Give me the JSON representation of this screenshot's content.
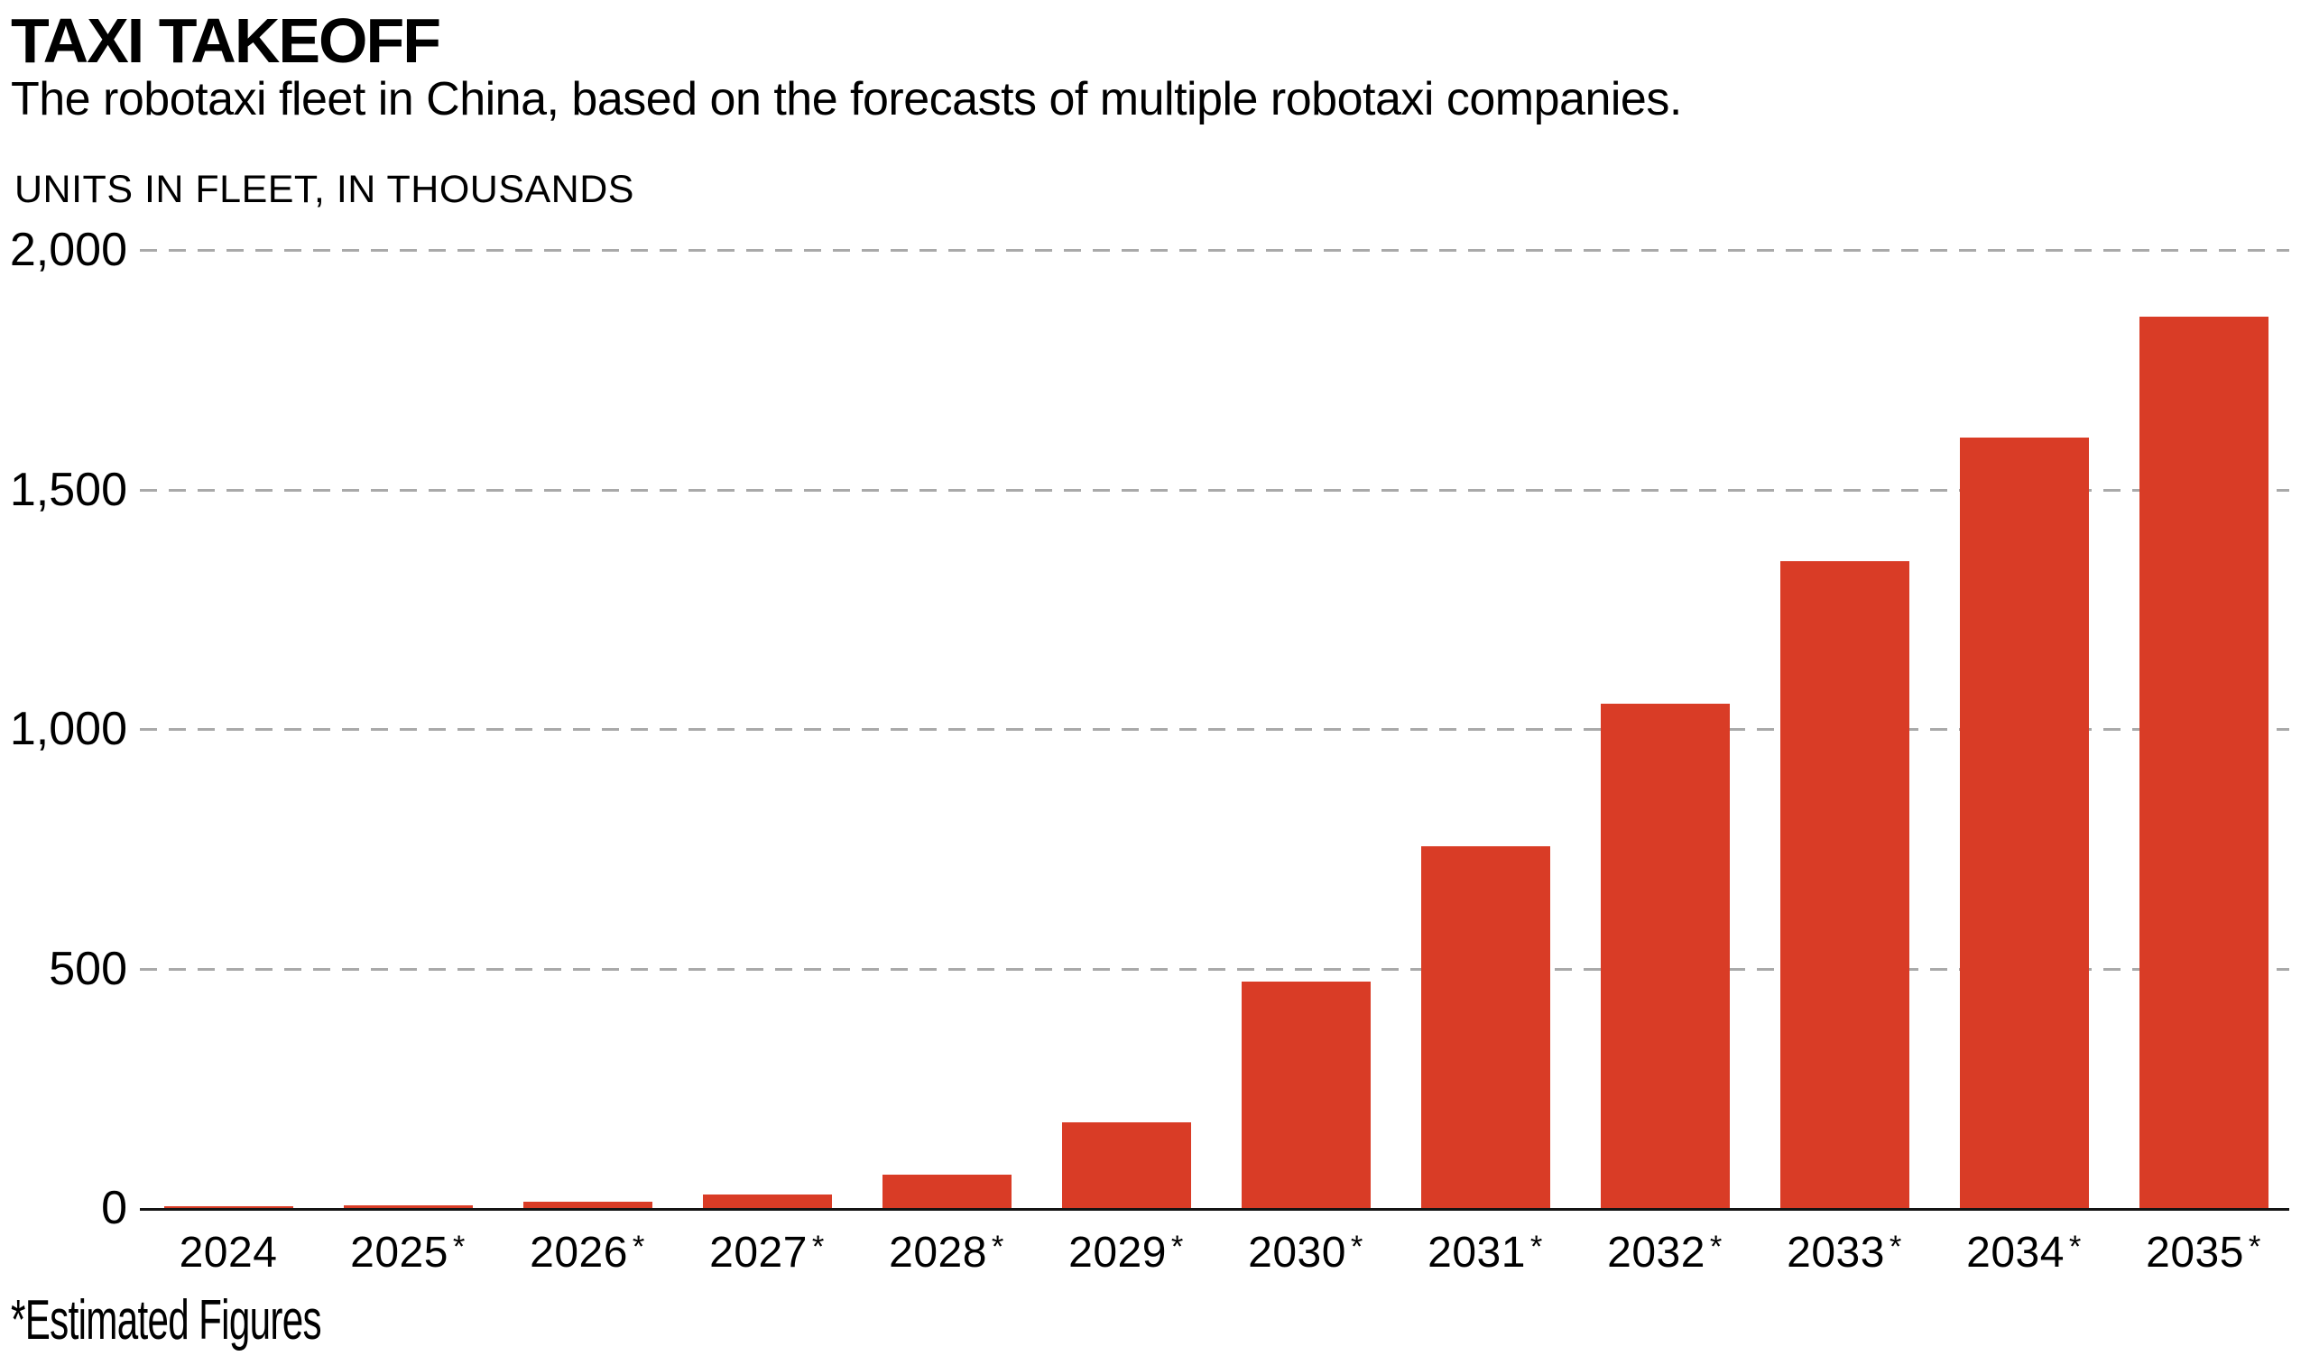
{
  "header": {
    "title": "TAXI TAKEOFF",
    "subtitle": "The robotaxi fleet in China, based on the forecasts of multiple robotaxi companies."
  },
  "footnote": "*Estimated Figures",
  "chart_data": {
    "type": "bar",
    "title": "TAXI TAKEOFF",
    "subtitle": "The robotaxi fleet in China, based on the forecasts of multiple robotaxi companies.",
    "ylabel": "UNITS IN FLEET, IN THOUSANDS",
    "xlabel": "",
    "footnote": "*Estimated Figures",
    "categories": [
      {
        "label": "2024",
        "estimated": false
      },
      {
        "label": "2025",
        "estimated": true
      },
      {
        "label": "2026",
        "estimated": true
      },
      {
        "label": "2027",
        "estimated": true
      },
      {
        "label": "2028",
        "estimated": true
      },
      {
        "label": "2029",
        "estimated": true
      },
      {
        "label": "2030",
        "estimated": true
      },
      {
        "label": "2031",
        "estimated": true
      },
      {
        "label": "2032",
        "estimated": true
      },
      {
        "label": "2033",
        "estimated": true
      },
      {
        "label": "2034",
        "estimated": true
      },
      {
        "label": "2035",
        "estimated": true
      }
    ],
    "values": [
      2,
      6,
      13,
      28,
      70,
      178,
      473,
      755,
      1053,
      1350,
      1608,
      1861
    ],
    "ylim": [
      0,
      2000
    ],
    "yticks": [
      {
        "value": 0,
        "label": "0"
      },
      {
        "value": 500,
        "label": "500"
      },
      {
        "value": 1000,
        "label": "1,000"
      },
      {
        "value": 1500,
        "label": "1,500"
      },
      {
        "value": 2000,
        "label": "2,000"
      }
    ],
    "grid": "horizontal-dashed",
    "legend": "none",
    "colors": {
      "bar": "#d93c26",
      "grid": "#a9a9a9",
      "axis": "#141414",
      "text": "#000000"
    }
  }
}
